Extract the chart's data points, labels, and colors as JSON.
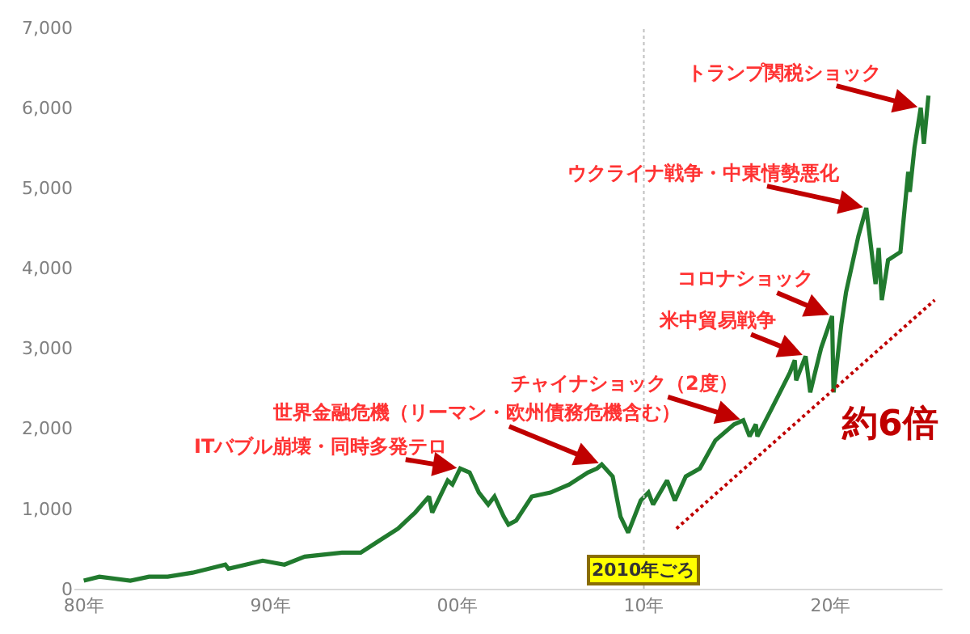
{
  "chart_data": {
    "type": "line",
    "x": [
      "1980-01",
      "1980-11",
      "1982-07",
      "1983-07",
      "1984-07",
      "1985-11",
      "1987-08",
      "1987-10",
      "1989-08",
      "1990-10",
      "1991-11",
      "1993-11",
      "1994-11",
      "1995-11",
      "1996-11",
      "1997-10",
      "1998-07",
      "1998-09",
      "1999-07",
      "1999-10",
      "2000-03",
      "2000-09",
      "2001-03",
      "2001-09",
      "2002-01",
      "2002-07",
      "2002-10",
      "2003-03",
      "2004-01",
      "2005-01",
      "2006-01",
      "2007-01",
      "2007-07",
      "2007-10",
      "2008-05",
      "2008-10",
      "2009-03",
      "2009-11",
      "2010-04",
      "2010-07",
      "2011-04",
      "2011-09",
      "2012-04",
      "2013-01",
      "2013-11",
      "2014-11",
      "2015-05",
      "2015-09",
      "2016-01",
      "2016-02",
      "2016-10",
      "2017-11",
      "2018-02",
      "2018-03",
      "2018-09",
      "2018-12",
      "2019-07",
      "2020-02",
      "2020-03",
      "2020-08",
      "2020-11",
      "2021-07",
      "2021-12",
      "2022-06",
      "2022-08",
      "2022-10",
      "2023-02",
      "2023-10",
      "2024-03",
      "2024-04",
      "2024-07",
      "2024-11",
      "2025-01",
      "2025-04"
    ],
    "series": [
      {
        "color": "#217a2e",
        "values": [
          100,
          150,
          100,
          150,
          150,
          200,
          300,
          250,
          350,
          300,
          400,
          450,
          450,
          600,
          750,
          950,
          1150,
          950,
          1350,
          1300,
          1500,
          1450,
          1200,
          1050,
          1150,
          900,
          800,
          850,
          1150,
          1200,
          1300,
          1450,
          1500,
          1550,
          1400,
          900,
          700,
          1100,
          1200,
          1050,
          1350,
          1100,
          1400,
          1500,
          1850,
          2050,
          2100,
          1900,
          2050,
          1900,
          2200,
          2700,
          2850,
          2600,
          2900,
          2450,
          3000,
          3400,
          2450,
          3300,
          3700,
          4400,
          4750,
          3800,
          4250,
          3600,
          4100,
          4200,
          5200,
          4950,
          5500,
          6000,
          5550,
          6150
        ]
      },
      {
        "type": "line",
        "name": "約6倍",
        "color": "#c00000",
        "line_style": "dotted",
        "x": [
          "2011-10",
          "2025-08"
        ],
        "values": [
          750,
          3600
        ]
      }
    ],
    "xlim": [
      "1979-07",
      "2026-01"
    ],
    "xticks": [
      {
        "value": "1980",
        "label": "80年"
      },
      {
        "value": "1990",
        "label": "90年"
      },
      {
        "value": "2000",
        "label": "00年"
      },
      {
        "value": "2010",
        "label": "10年"
      },
      {
        "value": "2020",
        "label": "20年"
      }
    ],
    "ylim": [
      0,
      7000
    ],
    "yticks": [
      0,
      {
        "value": 1000,
        "label": "1,000"
      },
      {
        "value": 2000,
        "label": "2,000"
      },
      {
        "value": 3000,
        "label": "3,000"
      },
      {
        "value": 4000,
        "label": "4,000"
      },
      {
        "value": 5000,
        "label": "5,000"
      },
      {
        "value": 6000,
        "label": "6,000"
      },
      {
        "value": 7000,
        "label": "7,000"
      }
    ],
    "grid": false,
    "legend": false,
    "marker": "none",
    "line_style": "solid",
    "ref_lines": [
      {
        "axis": "x",
        "value": "2010",
        "label": "2010年ごろ",
        "color": "#c0c0c0",
        "line_style": "dotted"
      }
    ],
    "annotations": [
      {
        "text": "ITバブル崩壊・同時多発テロ",
        "x": "2000-03",
        "y": 1500
      },
      {
        "text": "世界金融危機（リーマン・欧州債務危機含む）",
        "x": "2007-10",
        "y": 1550
      },
      {
        "text": "チャイナショック（2度）",
        "x": "2015-05",
        "y": 2100
      },
      {
        "text": "米中貿易戦争",
        "x": "2018-09",
        "y": 2900
      },
      {
        "text": "コロナショック",
        "x": "2020-02",
        "y": 3400
      },
      {
        "text": "ウクライナ戦争・中東情勢悪化",
        "x": "2021-12",
        "y": 4750
      },
      {
        "text": "トランプ関税ショック",
        "x": "2024-11",
        "y": 6000
      }
    ]
  }
}
